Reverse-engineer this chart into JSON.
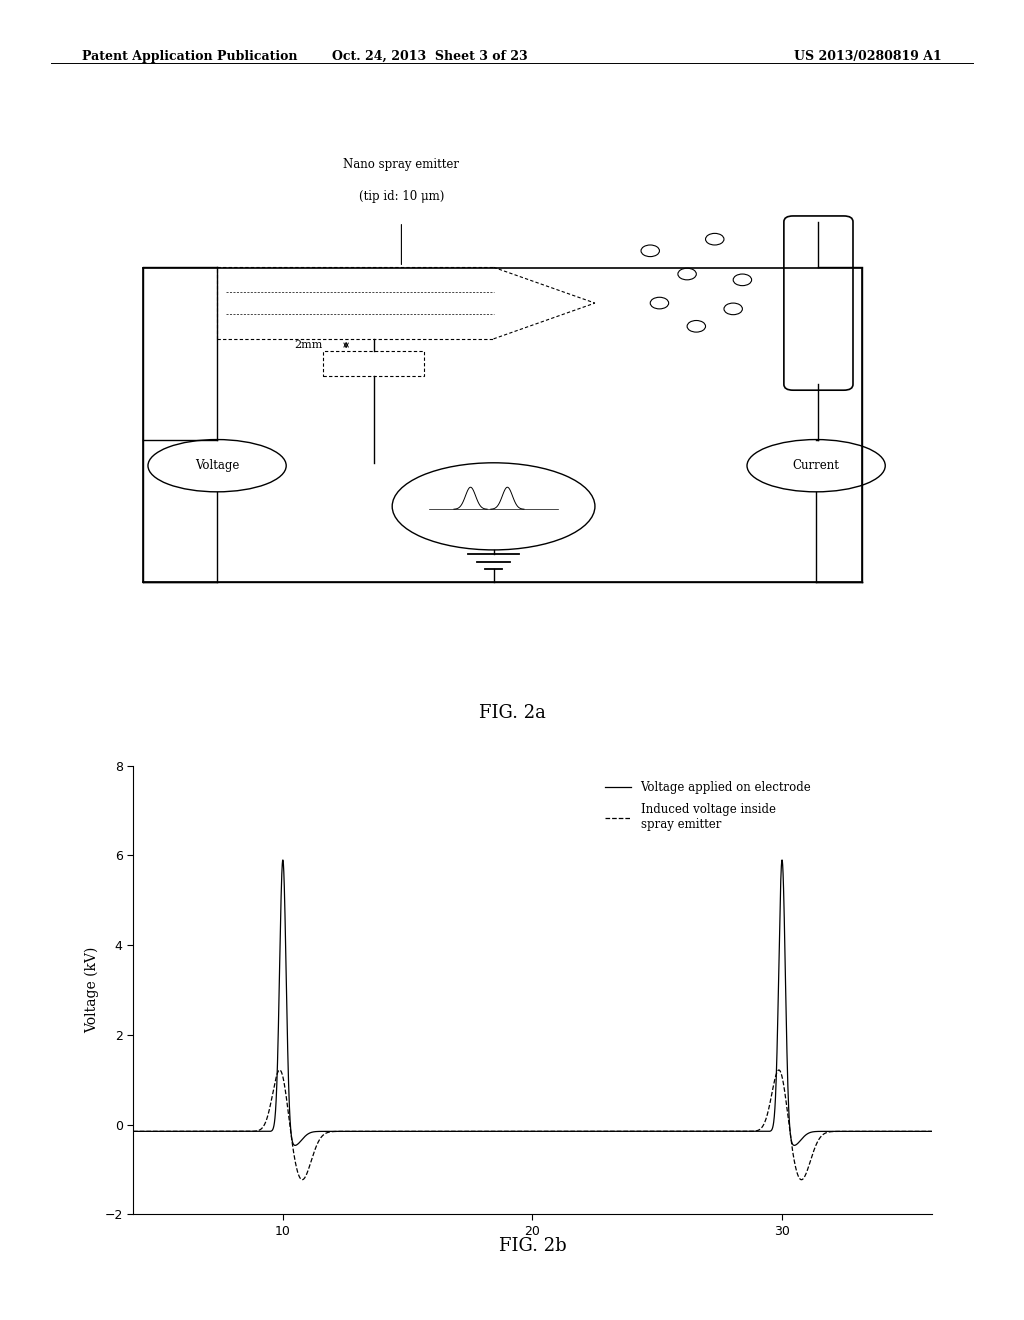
{
  "header_left": "Patent Application Publication",
  "header_mid": "Oct. 24, 2013  Sheet 3 of 23",
  "header_right": "US 2013/0280819 A1",
  "fig2a_label": "FIG. 2a",
  "fig2b_label": "FIG. 2b",
  "diagram_title_line1": "Nano spray emitter",
  "diagram_title_line2": "(tip id: 10 μm)",
  "label_2mm": "2mm",
  "label_voltage": "Voltage",
  "label_current": "Current",
  "ylabel": "Voltage (kV)",
  "legend1": "Voltage applied on electrode",
  "legend2": "Induced voltage inside\nspray emitter",
  "ylim": [
    -2,
    8
  ],
  "yticks": [
    -2,
    0,
    2,
    4,
    6,
    8
  ],
  "xlim": [
    4,
    36
  ],
  "xticks": [
    10,
    20,
    30
  ],
  "background": "#ffffff",
  "line_color": "#000000"
}
